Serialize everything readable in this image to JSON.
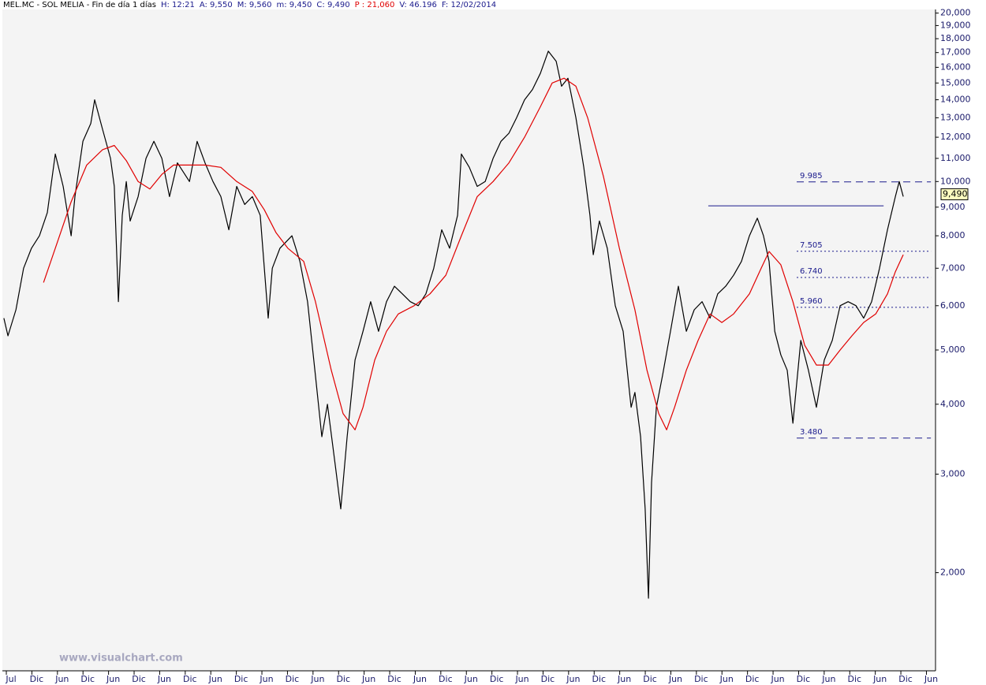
{
  "chart_data": {
    "type": "line",
    "log_scale": true,
    "title": "MEL.MC - SOL MELIA - Fin de día 1 días",
    "stats": [
      {
        "text": "H: 12:21",
        "color": "#1a1a8c"
      },
      {
        "text": "A: 9,550",
        "color": "#1a1a8c"
      },
      {
        "text": "M: 9,560",
        "color": "#1a1a8c"
      },
      {
        "text": "m: 9,450",
        "color": "#1a1a8c"
      },
      {
        "text": "C: 9,490",
        "color": "#1a1a8c"
      },
      {
        "text": "P : 21,060",
        "color": "#e00000"
      },
      {
        "text": "V: 46.196",
        "color": "#1a1a8c"
      },
      {
        "text": "F: 12/02/2014",
        "color": "#1a1a8c"
      }
    ],
    "watermark": "www.visualchart.com",
    "xlim": [
      -0.34,
      36.14
    ],
    "xticks": [
      {
        "value": 0,
        "label": "Jul"
      },
      {
        "value": 1,
        "label": "Dic"
      },
      {
        "value": 2,
        "label": "Jun"
      },
      {
        "value": 3,
        "label": "Dic"
      },
      {
        "value": 4,
        "label": "Jun"
      },
      {
        "value": 5,
        "label": "Dic"
      },
      {
        "value": 6,
        "label": "Jun"
      },
      {
        "value": 7,
        "label": "Dic"
      },
      {
        "value": 8,
        "label": "Jun"
      },
      {
        "value": 9,
        "label": "Dic"
      },
      {
        "value": 10,
        "label": "Jun"
      },
      {
        "value": 11,
        "label": "Dic"
      },
      {
        "value": 12,
        "label": "Jun"
      },
      {
        "value": 13,
        "label": "Dic"
      },
      {
        "value": 14,
        "label": "Jun"
      },
      {
        "value": 15,
        "label": "Dic"
      },
      {
        "value": 16,
        "label": "Jun"
      },
      {
        "value": 17,
        "label": "Dic"
      },
      {
        "value": 18,
        "label": "Jun"
      },
      {
        "value": 19,
        "label": "Dic"
      },
      {
        "value": 20,
        "label": "Jun"
      },
      {
        "value": 21,
        "label": "Dic"
      },
      {
        "value": 22,
        "label": "Jun"
      },
      {
        "value": 23,
        "label": "Dic"
      },
      {
        "value": 24,
        "label": "Jun"
      },
      {
        "value": 25,
        "label": "Dic"
      },
      {
        "value": 26,
        "label": "Jun"
      },
      {
        "value": 27,
        "label": "Dic"
      },
      {
        "value": 28,
        "label": "Jun"
      },
      {
        "value": 29,
        "label": "Dic"
      },
      {
        "value": 30,
        "label": "Jun"
      },
      {
        "value": 31,
        "label": "Dic"
      },
      {
        "value": 32,
        "label": "Jun"
      },
      {
        "value": 33,
        "label": "Dic"
      },
      {
        "value": 34,
        "label": "Jun"
      },
      {
        "value": 35,
        "label": "Dic"
      },
      {
        "value": 36,
        "label": "Jun"
      }
    ],
    "ylim": [
      1.34,
      20.3
    ],
    "yticks": [
      {
        "value": 20,
        "label": "20,000"
      },
      {
        "value": 19,
        "label": "19,000"
      },
      {
        "value": 18,
        "label": "18,000"
      },
      {
        "value": 17,
        "label": "17,000"
      },
      {
        "value": 16,
        "label": "16,000"
      },
      {
        "value": 15,
        "label": "15,000"
      },
      {
        "value": 14,
        "label": "14,000"
      },
      {
        "value": 13,
        "label": "13,000"
      },
      {
        "value": 12,
        "label": "12,000"
      },
      {
        "value": 11,
        "label": "11,000"
      },
      {
        "value": 10,
        "label": "10,000"
      },
      {
        "value": 9,
        "label": "9,000"
      },
      {
        "value": 8,
        "label": "8,000"
      },
      {
        "value": 7,
        "label": "7,000"
      },
      {
        "value": 6,
        "label": "6,000"
      },
      {
        "value": 5,
        "label": "5,000"
      },
      {
        "value": 4,
        "label": "4,000"
      },
      {
        "value": 3,
        "label": "3,000"
      },
      {
        "value": 2,
        "label": "2,000"
      }
    ],
    "series": [
      {
        "color": "#000000",
        "x": [
          -0.28,
          -0.12,
          0.19,
          0.49,
          0.8,
          1.11,
          1.42,
          1.73,
          2.04,
          2.35,
          2.5,
          2.81,
          3.12,
          3.27,
          3.58,
          3.89,
          4.04,
          4.2,
          4.35,
          4.51,
          4.66,
          4.97,
          5.28,
          5.59,
          5.9,
          6.2,
          6.51,
          6.98,
          7.28,
          7.59,
          7.9,
          8.21,
          8.52,
          8.83,
          9.14,
          9.44,
          9.75,
          10.06,
          10.22,
          10.52,
          10.99,
          11.3,
          11.6,
          11.91,
          12.16,
          12.38,
          12.69,
          12.9,
          13.15,
          13.46,
          13.77,
          14.07,
          14.38,
          14.69,
          15.0,
          15.31,
          15.62,
          15.93,
          16.23,
          16.54,
          16.85,
          17.16,
          17.47,
          17.62,
          17.93,
          18.24,
          18.55,
          18.86,
          19.17,
          19.48,
          19.78,
          20.09,
          20.4,
          20.71,
          21.02,
          21.33,
          21.54,
          21.79,
          22.1,
          22.41,
          22.65,
          22.78,
          23.02,
          23.33,
          23.64,
          23.95,
          24.26,
          24.41,
          24.63,
          24.81,
          24.94,
          25.06,
          25.25,
          25.49,
          25.8,
          26.11,
          26.42,
          26.73,
          27.04,
          27.35,
          27.65,
          27.96,
          28.27,
          28.58,
          28.89,
          29.2,
          29.44,
          29.66,
          29.88,
          30.12,
          30.37,
          30.59,
          30.9,
          31.2,
          31.51,
          31.82,
          32.13,
          32.44,
          32.75,
          33.06,
          33.36,
          33.67,
          33.98,
          34.29,
          34.6,
          34.75,
          34.91
        ],
        "values": [
          5.7,
          5.3,
          5.9,
          7.0,
          7.6,
          8.0,
          8.8,
          11.2,
          9.8,
          8.0,
          9.4,
          11.8,
          12.7,
          14.0,
          12.4,
          11.0,
          9.8,
          6.1,
          8.7,
          10.0,
          8.5,
          9.4,
          11.0,
          11.8,
          11.0,
          9.4,
          10.8,
          10.0,
          11.8,
          10.8,
          10.0,
          9.4,
          8.2,
          9.8,
          9.1,
          9.4,
          8.7,
          5.7,
          7.0,
          7.6,
          8.0,
          7.2,
          6.1,
          4.5,
          3.5,
          4.0,
          3.1,
          2.6,
          3.5,
          4.8,
          5.4,
          6.1,
          5.4,
          6.1,
          6.5,
          6.3,
          6.1,
          6.0,
          6.3,
          7.0,
          8.2,
          7.6,
          8.7,
          11.2,
          10.6,
          9.8,
          10.0,
          11.0,
          11.8,
          12.2,
          13.0,
          14.0,
          14.6,
          15.6,
          17.1,
          16.4,
          14.8,
          15.3,
          13.0,
          10.6,
          8.7,
          7.4,
          8.5,
          7.6,
          6.0,
          5.4,
          3.95,
          4.2,
          3.5,
          2.6,
          1.8,
          2.9,
          3.95,
          4.5,
          5.4,
          6.5,
          5.4,
          5.9,
          6.1,
          5.7,
          6.3,
          6.5,
          6.8,
          7.2,
          8.0,
          8.6,
          8.0,
          7.2,
          5.4,
          4.9,
          4.6,
          3.7,
          5.2,
          4.6,
          3.95,
          4.8,
          5.2,
          6.0,
          6.1,
          6.0,
          5.7,
          6.1,
          7.0,
          8.2,
          9.4,
          10.0,
          9.4
        ]
      },
      {
        "color": "#e00000",
        "x": [
          1.27,
          1.73,
          2.35,
          2.96,
          3.58,
          4.04,
          4.51,
          4.97,
          5.43,
          5.9,
          6.36,
          6.98,
          7.59,
          8.21,
          8.83,
          9.44,
          9.91,
          10.37,
          10.83,
          11.45,
          11.91,
          12.53,
          12.99,
          13.46,
          13.77,
          14.23,
          14.69,
          15.15,
          15.77,
          16.39,
          17.01,
          17.62,
          18.24,
          18.86,
          19.48,
          20.09,
          20.71,
          21.17,
          21.64,
          22.1,
          22.56,
          23.18,
          23.8,
          24.41,
          24.88,
          25.34,
          25.65,
          25.96,
          26.42,
          26.88,
          27.35,
          27.81,
          28.27,
          28.89,
          29.35,
          29.66,
          30.12,
          30.59,
          31.05,
          31.51,
          31.98,
          32.44,
          32.9,
          33.36,
          33.83,
          34.29,
          34.6,
          34.91
        ],
        "values": [
          6.6,
          7.6,
          9.2,
          10.7,
          11.4,
          11.6,
          10.9,
          10.0,
          9.7,
          10.3,
          10.7,
          10.7,
          10.7,
          10.6,
          10.0,
          9.6,
          8.9,
          8.1,
          7.6,
          7.2,
          6.1,
          4.6,
          3.85,
          3.6,
          3.95,
          4.8,
          5.4,
          5.8,
          6.0,
          6.3,
          6.8,
          8.0,
          9.4,
          10.0,
          10.8,
          12.0,
          13.6,
          15.0,
          15.3,
          14.8,
          13.0,
          10.2,
          7.6,
          5.9,
          4.6,
          3.85,
          3.6,
          3.95,
          4.6,
          5.2,
          5.8,
          5.6,
          5.8,
          6.3,
          7.0,
          7.5,
          7.1,
          6.1,
          5.1,
          4.7,
          4.7,
          5.0,
          5.3,
          5.6,
          5.8,
          6.3,
          6.9,
          7.4
        ]
      }
    ],
    "resistance": {
      "x": [
        27.28,
        34.14
      ],
      "value": 9.05,
      "color": "#1a1a8c"
    },
    "levels_x": [
      30.74,
      35.99
    ],
    "levels": [
      {
        "value": 9.985,
        "label": "9.985",
        "style": "dashed"
      },
      {
        "value": 7.505,
        "label": "7.505",
        "style": "dotted"
      },
      {
        "value": 6.74,
        "label": "6.740",
        "style": "dotted"
      },
      {
        "value": 5.96,
        "label": "5.960",
        "style": "dotted"
      },
      {
        "value": 3.48,
        "label": "3.480",
        "style": "dashed"
      }
    ],
    "last_label": {
      "value": 9.49,
      "label": "9,490"
    }
  }
}
